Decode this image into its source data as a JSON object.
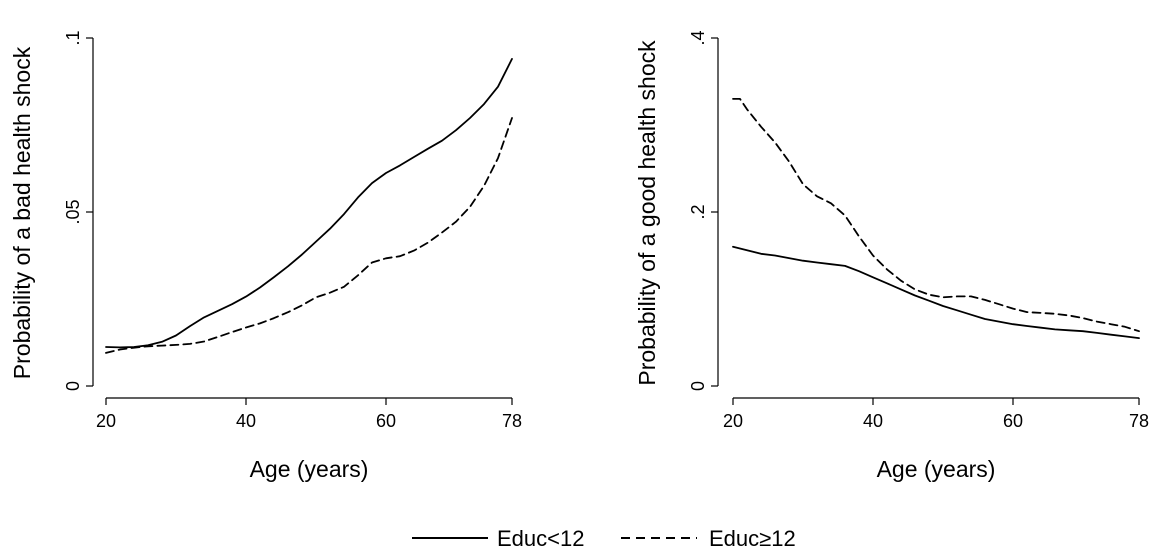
{
  "chart_data": [
    {
      "type": "line",
      "xlabel": "Age (years)",
      "ylabel": "Probability of a bad health shock",
      "xlim": [
        20,
        78
      ],
      "ylim": [
        0,
        0.1
      ],
      "xticks": [
        20,
        40,
        60,
        78
      ],
      "xtick_labels": [
        "20",
        "40",
        "60",
        "78"
      ],
      "yticks": [
        0,
        0.05,
        0.1
      ],
      "ytick_labels": [
        "0",
        ".05",
        ".1"
      ],
      "grid": false,
      "series": [
        {
          "name": "Educ<12",
          "style": "solid",
          "x": [
            20,
            22,
            24,
            26,
            28,
            30,
            32,
            34,
            36,
            38,
            40,
            42,
            44,
            46,
            48,
            50,
            52,
            54,
            56,
            58,
            60,
            62,
            64,
            66,
            68,
            70,
            72,
            74,
            76,
            78
          ],
          "y": [
            0.0112,
            0.0111,
            0.0112,
            0.0117,
            0.0127,
            0.0145,
            0.0172,
            0.0197,
            0.0216,
            0.0235,
            0.0257,
            0.0283,
            0.0313,
            0.0344,
            0.0378,
            0.0415,
            0.0452,
            0.0494,
            0.0542,
            0.0583,
            0.0612,
            0.0634,
            0.0658,
            0.0682,
            0.0705,
            0.0735,
            0.077,
            0.081,
            0.086,
            0.094
          ]
        },
        {
          "name": "Educ≥12",
          "style": "dashed",
          "x": [
            20,
            22,
            24,
            26,
            28,
            30,
            32,
            34,
            36,
            38,
            40,
            42,
            44,
            46,
            48,
            50,
            52,
            54,
            56,
            58,
            60,
            62,
            64,
            66,
            68,
            70,
            72,
            74,
            76,
            78
          ],
          "y": [
            0.0095,
            0.0105,
            0.011,
            0.0114,
            0.0116,
            0.0118,
            0.0121,
            0.0128,
            0.0141,
            0.0155,
            0.0168,
            0.018,
            0.0195,
            0.0212,
            0.0232,
            0.0255,
            0.0268,
            0.0285,
            0.0318,
            0.0355,
            0.0367,
            0.0373,
            0.0389,
            0.0412,
            0.0441,
            0.0472,
            0.0515,
            0.0575,
            0.0655,
            0.077
          ]
        }
      ]
    },
    {
      "type": "line",
      "xlabel": "Age (years)",
      "ylabel": "Probability of a good health shock",
      "xlim": [
        20,
        78
      ],
      "ylim": [
        0,
        0.4
      ],
      "xticks": [
        20,
        40,
        60,
        78
      ],
      "xtick_labels": [
        "20",
        "40",
        "60",
        "78"
      ],
      "yticks": [
        0,
        0.2,
        0.4
      ],
      "ytick_labels": [
        "0",
        ".2",
        ".4"
      ],
      "grid": false,
      "series": [
        {
          "name": "Educ<12",
          "style": "solid",
          "x": [
            20,
            22,
            24,
            26,
            28,
            30,
            32,
            34,
            36,
            38,
            40,
            42,
            44,
            46,
            48,
            50,
            52,
            54,
            56,
            58,
            60,
            62,
            64,
            66,
            68,
            70,
            72,
            74,
            76,
            78
          ],
          "y": [
            0.16,
            0.156,
            0.152,
            0.15,
            0.147,
            0.144,
            0.142,
            0.14,
            0.138,
            0.132,
            0.125,
            0.118,
            0.111,
            0.104,
            0.098,
            0.092,
            0.087,
            0.082,
            0.077,
            0.074,
            0.071,
            0.069,
            0.067,
            0.065,
            0.064,
            0.063,
            0.061,
            0.059,
            0.057,
            0.055
          ]
        },
        {
          "name": "Educ≥12",
          "style": "dashed",
          "x": [
            20,
            21,
            22,
            24,
            26,
            28,
            30,
            32,
            34,
            36,
            38,
            40,
            42,
            44,
            46,
            48,
            50,
            52,
            54,
            56,
            58,
            60,
            62,
            64,
            66,
            68,
            70,
            72,
            74,
            76,
            78
          ],
          "y": [
            0.33,
            0.33,
            0.318,
            0.298,
            0.28,
            0.258,
            0.232,
            0.218,
            0.21,
            0.196,
            0.172,
            0.15,
            0.134,
            0.121,
            0.111,
            0.105,
            0.102,
            0.103,
            0.103,
            0.099,
            0.094,
            0.089,
            0.085,
            0.084,
            0.083,
            0.081,
            0.078,
            0.074,
            0.071,
            0.068,
            0.063
          ]
        }
      ]
    }
  ],
  "legend": {
    "position": "bottom",
    "items": [
      {
        "label": "Educ<12",
        "style": "solid"
      },
      {
        "label": "Educ≥12",
        "style": "dashed"
      }
    ]
  }
}
